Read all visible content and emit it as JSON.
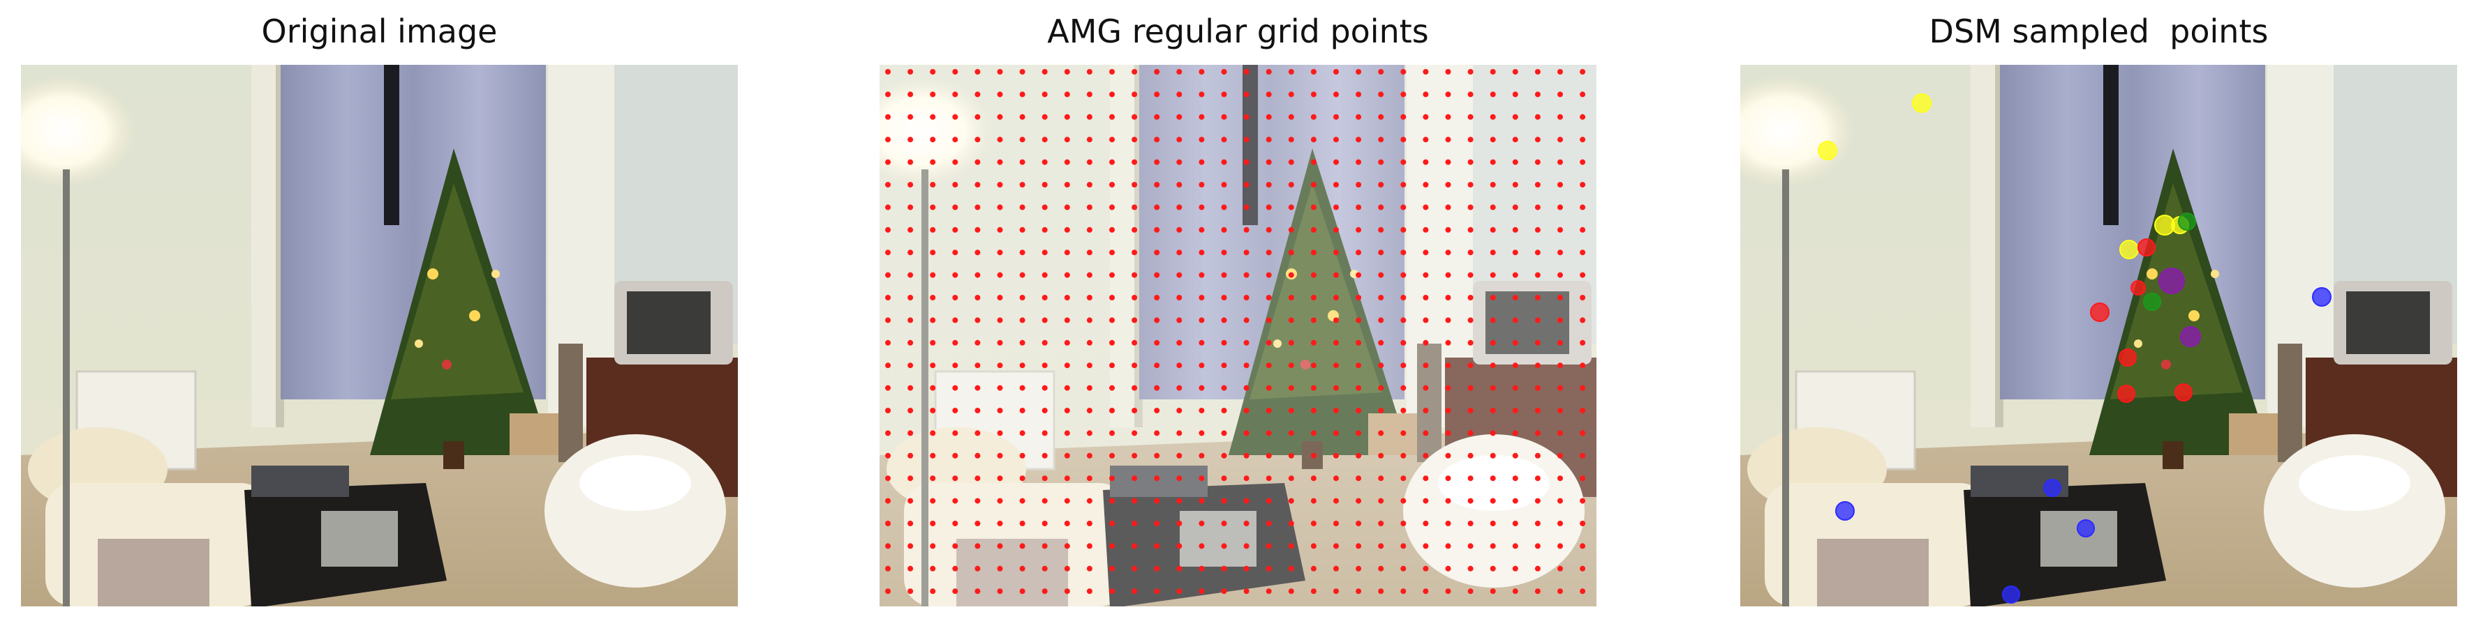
{
  "panels": [
    {
      "title": "Original image"
    },
    {
      "title": "AMG regular grid points"
    },
    {
      "title": "DSM sampled  points"
    }
  ],
  "colors": {
    "grid_point": "#ff1a1a",
    "point_yellow": "#ffff1a",
    "point_red": "#ff1a1a",
    "point_green": "#1a9a1a",
    "point_purple": "#8a1ab0",
    "point_blue": "#2b2bff"
  }
}
